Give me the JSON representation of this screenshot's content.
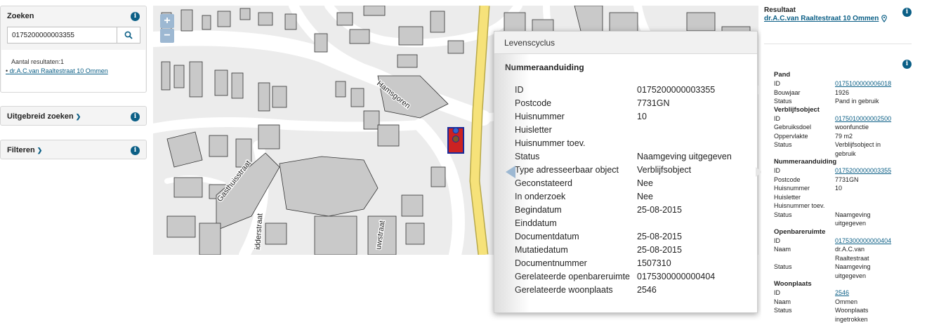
{
  "search": {
    "title": "Zoeken",
    "value": "0175200000003355",
    "result_count": "Aantal resultaten:1",
    "result_item": "dr.A.C.van Raaltestraat 10 Ommen"
  },
  "advanced": {
    "title": "Uitgebreid zoeken"
  },
  "filter": {
    "title": "Filteren"
  },
  "map": {
    "zoom_in": "+",
    "zoom_out": "−",
    "street_labels": [
      "Hamsgoren",
      "Gasthuisstraat",
      "idderstraat",
      "uwstraat"
    ]
  },
  "popup": {
    "header": "Levenscyclus",
    "title": "Nummeraanduiding",
    "rows": [
      {
        "key": "ID",
        "value": "0175200000003355"
      },
      {
        "key": "Postcode",
        "value": "7731GN"
      },
      {
        "key": "Huisnummer",
        "value": "10"
      },
      {
        "key": "Huisletter",
        "value": ""
      },
      {
        "key": "Huisnummer toev.",
        "value": ""
      },
      {
        "key": "Status",
        "value": "Naamgeving uitgegeven"
      },
      {
        "key": "Type adresseerbaar object",
        "value": "Verblijfsobject"
      },
      {
        "key": "Geconstateerd",
        "value": "Nee"
      },
      {
        "key": "In onderzoek",
        "value": "Nee"
      },
      {
        "key": "Begindatum",
        "value": "25-08-2015"
      },
      {
        "key": "Einddatum",
        "value": ""
      },
      {
        "key": "Documentdatum",
        "value": "25-08-2015"
      },
      {
        "key": "Mutatiedatum",
        "value": "25-08-2015"
      },
      {
        "key": "Documentnummer",
        "value": "1507310"
      },
      {
        "key": "Gerelateerde openbareruimte",
        "value": "0175300000000404"
      },
      {
        "key": "Gerelateerde woonplaats",
        "value": "2546"
      }
    ]
  },
  "result": {
    "label": "Resultaat",
    "link": "dr.A.C.van Raaltestraat 10 Ommen",
    "sections": [
      {
        "title": "Pand",
        "rows": [
          {
            "key": "ID",
            "value": "0175100000006018",
            "link": true
          },
          {
            "key": "Bouwjaar",
            "value": "1926"
          },
          {
            "key": "Status",
            "value": "Pand in gebruik"
          }
        ]
      },
      {
        "title": "Verblijfsobject",
        "rows": [
          {
            "key": "ID",
            "value": "0175010000002500",
            "link": true
          },
          {
            "key": "Gebruiksdoel",
            "value": "woonfunctie"
          },
          {
            "key": "Oppervlakte",
            "value": "79 m2"
          },
          {
            "key": "Status",
            "value": "Verblijfsobject in gebruik"
          }
        ]
      },
      {
        "title": "Nummeraanduiding",
        "rows": [
          {
            "key": "ID",
            "value": "0175200000003355",
            "link": true
          },
          {
            "key": "Postcode",
            "value": "7731GN"
          },
          {
            "key": "Huisnummer",
            "value": "10"
          },
          {
            "key": "Huisletter",
            "value": ""
          },
          {
            "key": "Huisnummer toev.",
            "value": ""
          },
          {
            "key": "Status",
            "value": "Naamgeving uitgegeven"
          }
        ]
      },
      {
        "title": "Openbareruimte",
        "rows": [
          {
            "key": "ID",
            "value": "0175300000000404",
            "link": true
          },
          {
            "key": "Naam",
            "value": "dr.A.C.van Raaltestraat"
          },
          {
            "key": "Status",
            "value": "Naamgeving uitgegeven"
          }
        ]
      },
      {
        "title": "Woonplaats",
        "rows": [
          {
            "key": "ID",
            "value": "2546",
            "link": true
          },
          {
            "key": "Naam",
            "value": "Ommen"
          },
          {
            "key": "Status",
            "value": "Woonplaats ingetrokken"
          }
        ]
      }
    ]
  },
  "colors": {
    "accent": "#0b5f86",
    "road_main": "#f6e27a",
    "building": "#c9c9c9",
    "highlight": "#cc2222"
  }
}
